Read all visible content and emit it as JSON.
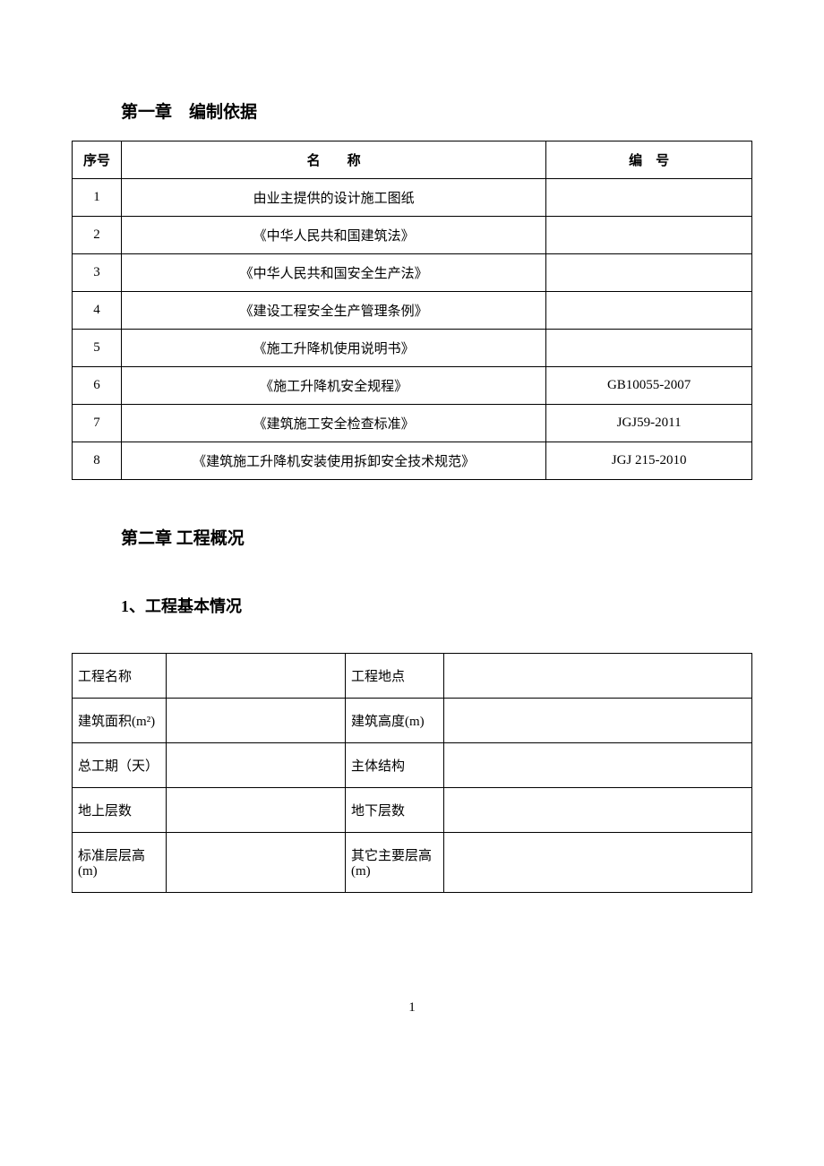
{
  "chapter1": {
    "title": "第一章　编制依据",
    "table": {
      "headers": {
        "seq": "序号",
        "name": "名　　称",
        "number": "编　号"
      },
      "rows": [
        {
          "seq": "1",
          "name": "由业主提供的设计施工图纸",
          "number": ""
        },
        {
          "seq": "2",
          "name": "《中华人民共和国建筑法》",
          "number": ""
        },
        {
          "seq": "3",
          "name": "《中华人民共和国安全生产法》",
          "number": ""
        },
        {
          "seq": "4",
          "name": "《建设工程安全生产管理条例》",
          "number": ""
        },
        {
          "seq": "5",
          "name": "《施工升降机使用说明书》",
          "number": ""
        },
        {
          "seq": "6",
          "name": "《施工升降机安全规程》",
          "number": "GB10055-2007"
        },
        {
          "seq": "7",
          "name": "《建筑施工安全检查标准》",
          "number": "JGJ59-2011"
        },
        {
          "seq": "8",
          "name": "《建筑施工升降机安装使用拆卸安全技术规范》",
          "number": "JGJ 215-2010"
        }
      ]
    }
  },
  "chapter2": {
    "title": "第二章 工程概况",
    "section1": {
      "title": "1、工程基本情况",
      "rows": [
        {
          "label1": "工程名称",
          "value1": "",
          "label2": "工程地点",
          "value2": ""
        },
        {
          "label1": "建筑面积(m²)",
          "value1": "",
          "label2": "建筑高度(m)",
          "value2": ""
        },
        {
          "label1": "总工期（天）",
          "value1": "",
          "label2": "主体结构",
          "value2": ""
        },
        {
          "label1": "地上层数",
          "value1": "",
          "label2": "地下层数",
          "value2": ""
        },
        {
          "label1": "标准层层高(m)",
          "value1": "",
          "label2": "其它主要层高(m)",
          "value2": ""
        }
      ]
    }
  },
  "pageNumber": "1",
  "styles": {
    "backgroundColor": "#ffffff",
    "textColor": "#000000",
    "borderColor": "#000000",
    "baseFontSize": 15,
    "titleFontSize": 19,
    "sectionFontSize": 18
  }
}
